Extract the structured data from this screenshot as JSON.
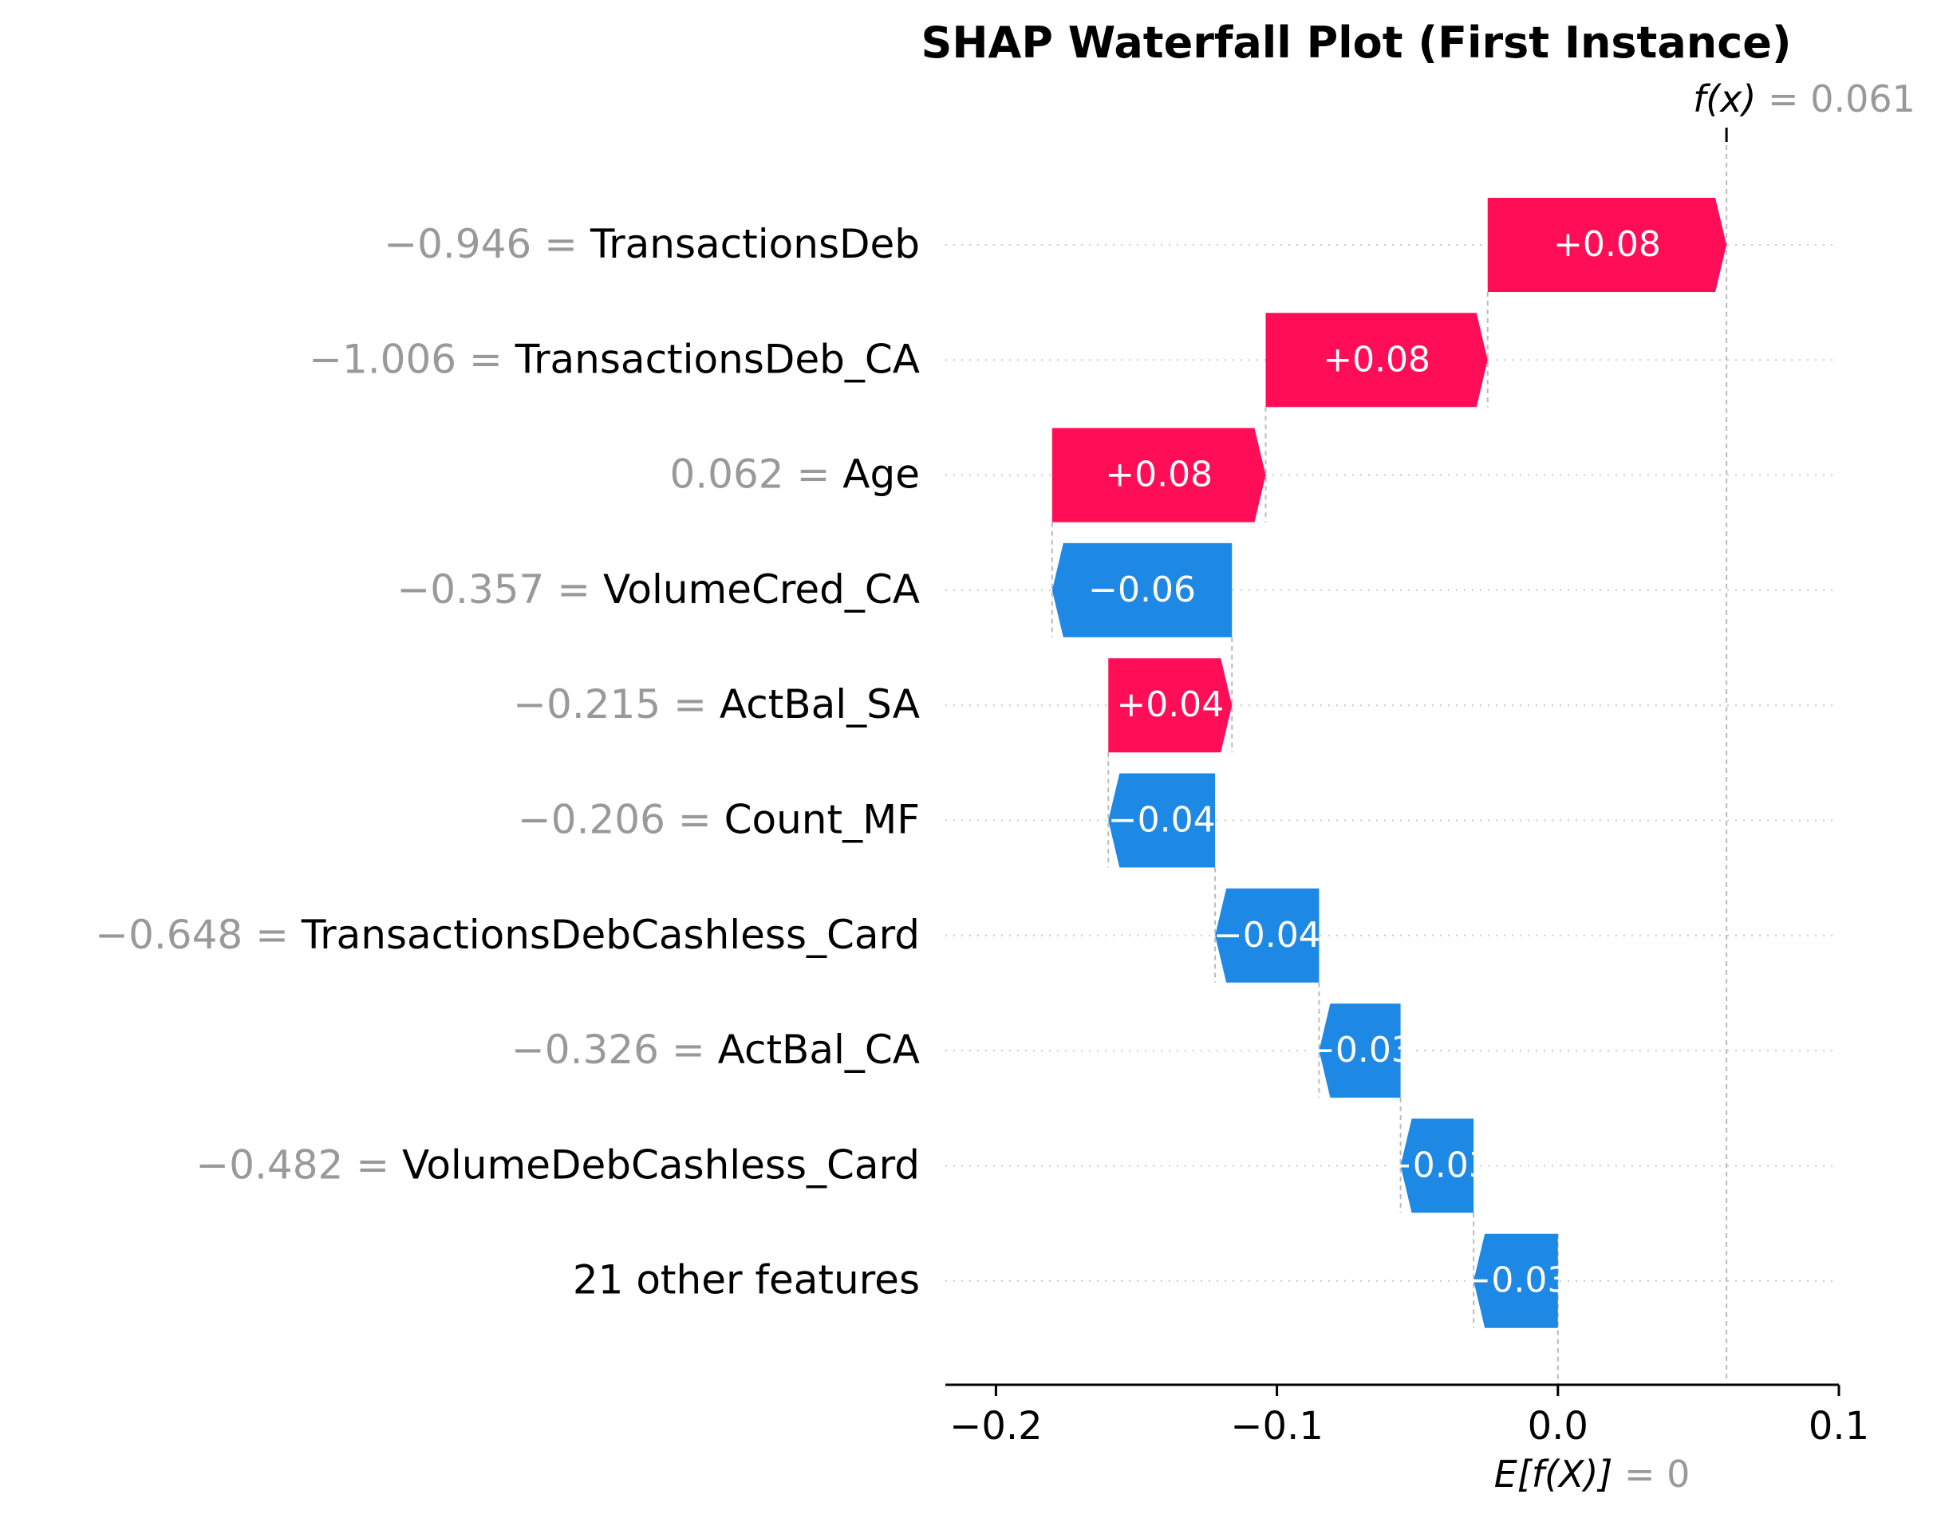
{
  "chart_data": {
    "type": "waterfall",
    "title": "SHAP Waterfall Plot (First Instance)",
    "fx_label": "f(x)",
    "fx_value": "0.061",
    "base_label": "E[f(X)]",
    "base_value": "0",
    "base": 0.0,
    "xlim": [
      -0.218,
      0.1
    ],
    "ticks": [
      -0.2,
      -0.1,
      0.0,
      0.1
    ],
    "tick_labels": [
      "−0.2",
      "−0.1",
      "0.0",
      "0.1"
    ],
    "bars": [
      {
        "feature": "TransactionsDeb",
        "feature_value": "−0.946",
        "shap": 0.085,
        "label": "+0.08"
      },
      {
        "feature": "TransactionsDeb_CA",
        "feature_value": "−1.006",
        "shap": 0.079,
        "label": "+0.08"
      },
      {
        "feature": "Age",
        "feature_value": "0.062",
        "shap": 0.076,
        "label": "+0.08"
      },
      {
        "feature": "VolumeCred_CA",
        "feature_value": "−0.357",
        "shap": -0.064,
        "label": "−0.06"
      },
      {
        "feature": "ActBal_SA",
        "feature_value": "−0.215",
        "shap": 0.044,
        "label": "+0.04"
      },
      {
        "feature": "Count_MF",
        "feature_value": "−0.206",
        "shap": -0.038,
        "label": "−0.04"
      },
      {
        "feature": "TransactionsDebCashless_Card",
        "feature_value": "−0.648",
        "shap": -0.037,
        "label": "−0.04"
      },
      {
        "feature": "ActBal_CA",
        "feature_value": "−0.326",
        "shap": -0.029,
        "label": "−0.03"
      },
      {
        "feature": "VolumeDebCashless_Card",
        "feature_value": "−0.482",
        "shap": -0.026,
        "label": "−0.03"
      },
      {
        "feature": "21 other features",
        "feature_value": "",
        "shap": -0.03,
        "label": "−0.03"
      }
    ],
    "colors": {
      "positive": "#ff0d57",
      "negative": "#1e88e5",
      "grey": "#999999",
      "text": "#000000"
    },
    "grid": "dotted horizontal per row"
  }
}
